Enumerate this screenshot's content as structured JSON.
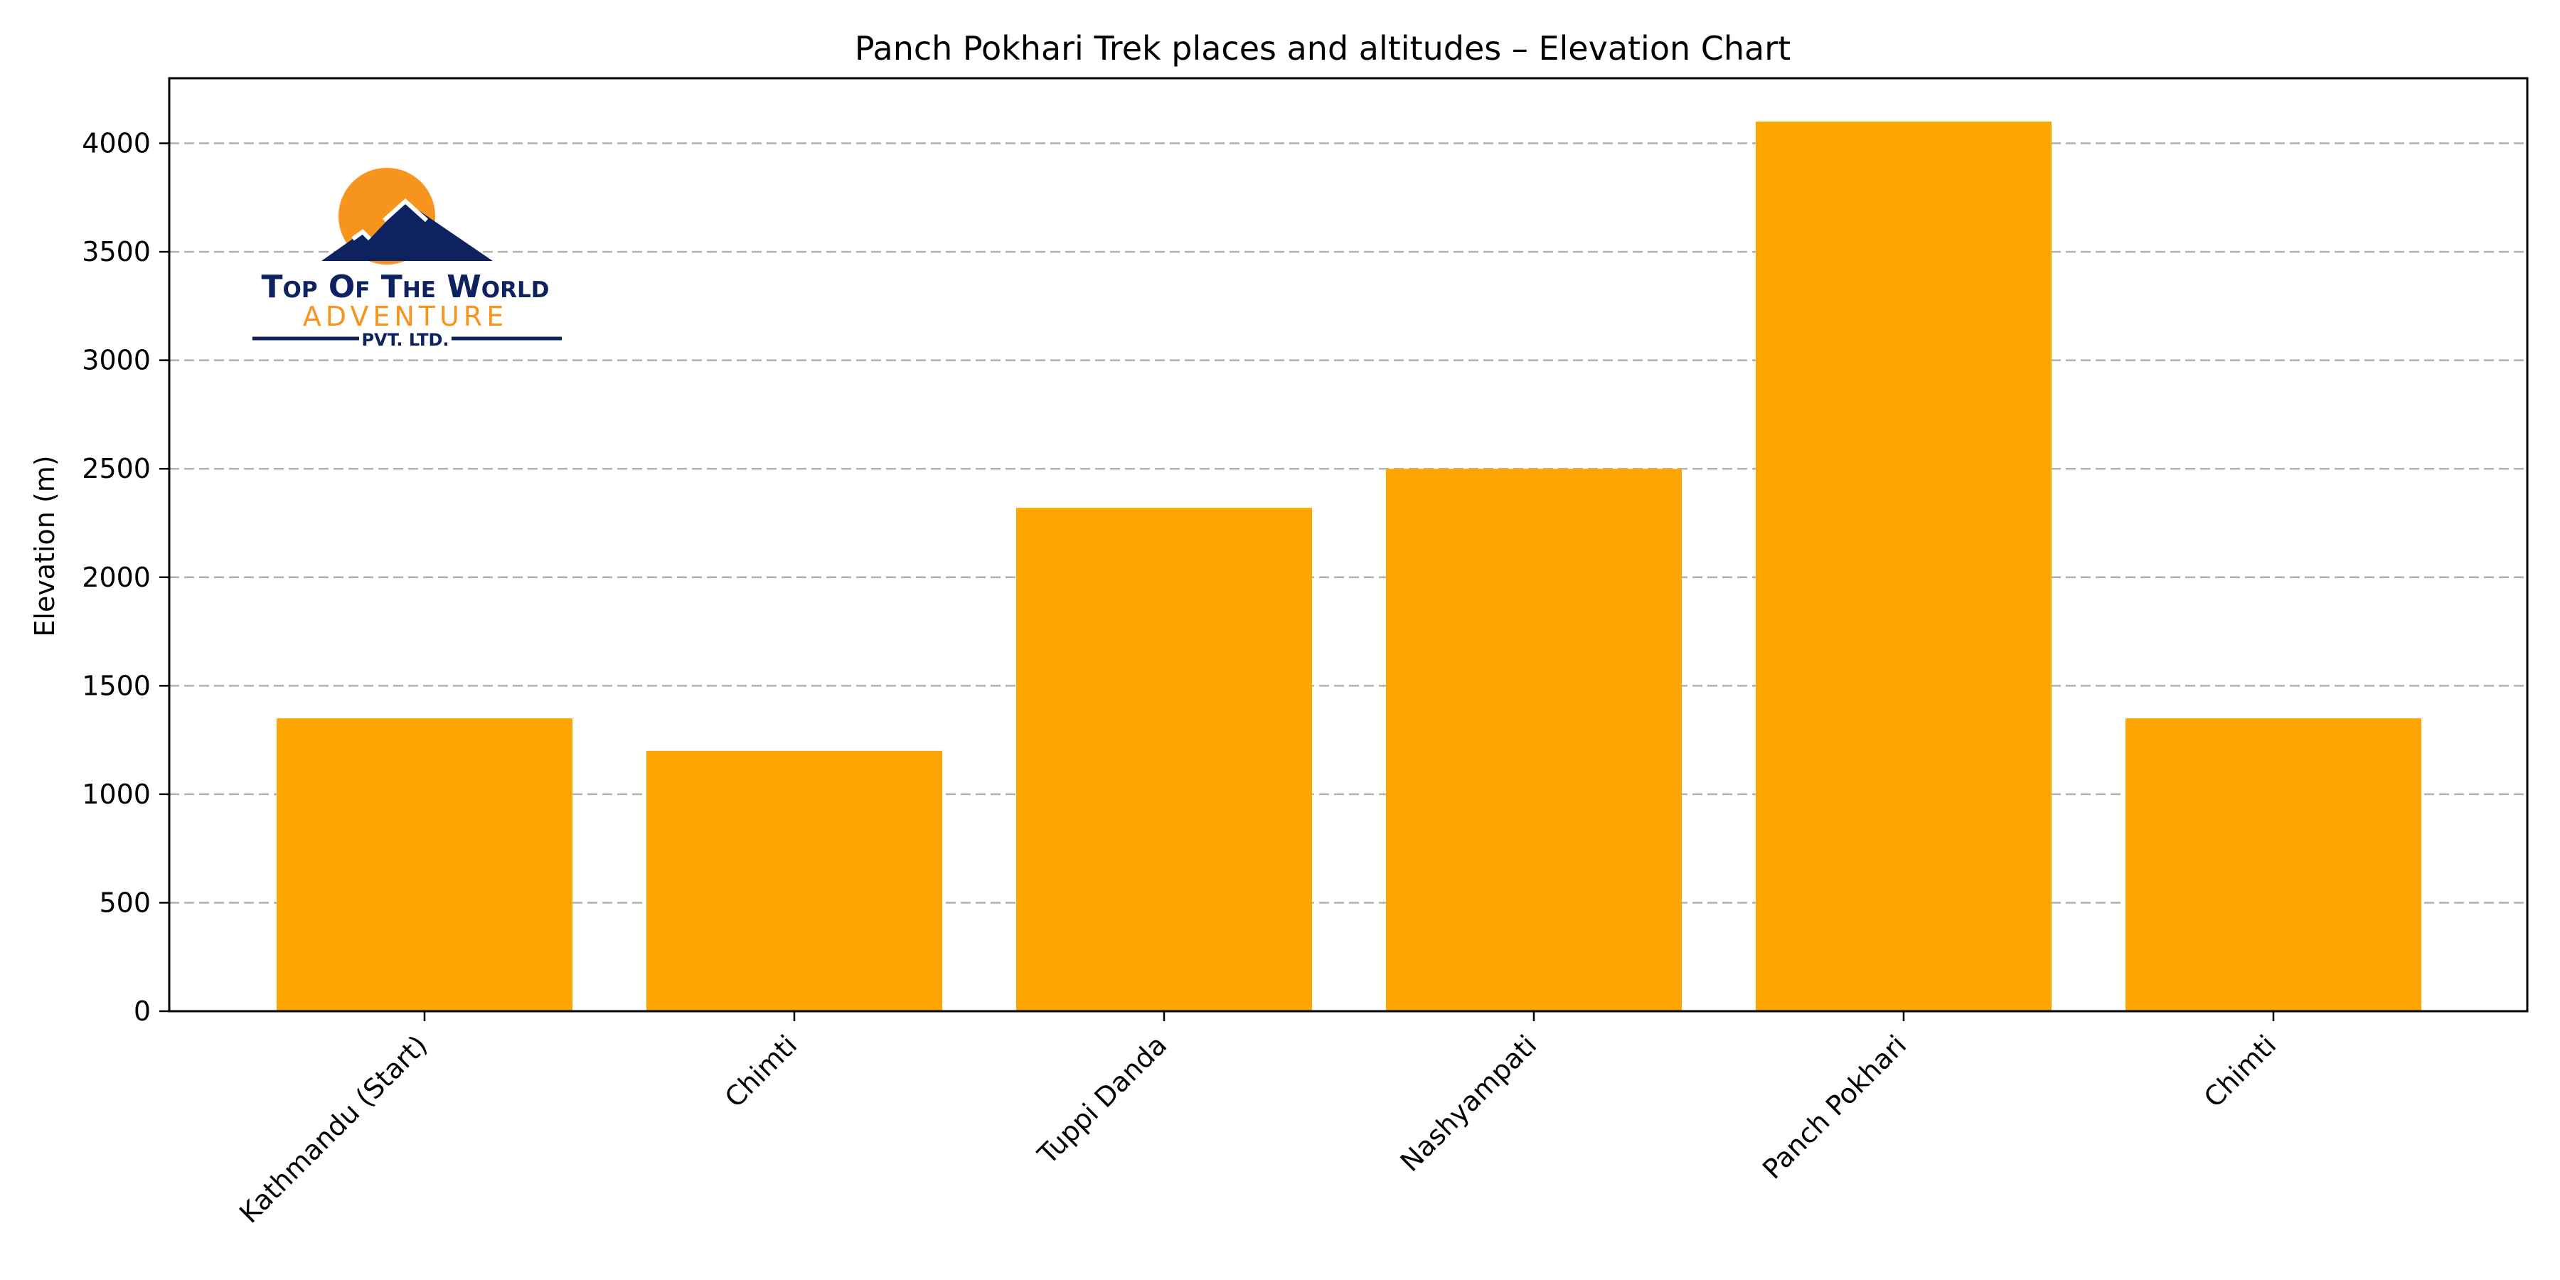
{
  "chart_data": {
    "type": "bar",
    "title": "Panch Pokhari Trek places and altitudes – Elevation Chart",
    "xlabel": "",
    "ylabel": "Elevation (m)",
    "categories": [
      "Kathmandu (Start)",
      "Chimti",
      "Tuppi Danda",
      "Nashyampati",
      "Panch Pokhari",
      "Chimti"
    ],
    "values": [
      1350,
      1200,
      2320,
      2500,
      4100,
      1350
    ],
    "ylim": [
      0,
      4300
    ],
    "yticks": [
      0,
      500,
      1000,
      1500,
      2000,
      2500,
      3000,
      3500,
      4000
    ],
    "bar_color": "#FFA500",
    "grid": "horizontal dashed",
    "legend": "none"
  },
  "logo": {
    "line1": "Top Of The World",
    "line2": "Adventure",
    "line3": "Pvt. Ltd.",
    "navy": "#0E2260",
    "orange": "#F7941D"
  }
}
